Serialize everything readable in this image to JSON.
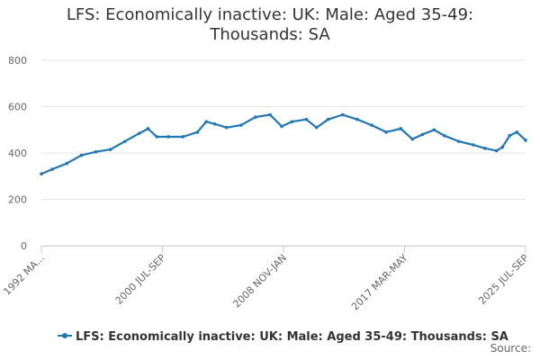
{
  "chart_data": {
    "type": "line",
    "title": "LFS: Economically inactive: UK: Male: Aged 35-49: Thousands: SA",
    "xlabel": "",
    "ylabel": "",
    "ylim": [
      0,
      800
    ],
    "y_ticks": [
      "0",
      "200",
      "400",
      "600",
      "800"
    ],
    "x_tick_labels": [
      "1992 MA...",
      "2000 JUL-SEP",
      "2008 NOV-JAN",
      "2017 MAR-MAY",
      "2025 JUL-SEP"
    ],
    "x_range": [
      1992.25,
      2025.6
    ],
    "grid": true,
    "legend_position": "bottom",
    "series": [
      {
        "name": "LFS: Economically inactive: UK: Male: Aged 35-49: Thousands: SA",
        "color": "#1f77b4",
        "points": [
          [
            1992.25,
            310
          ],
          [
            1993.0,
            330
          ],
          [
            1994.0,
            355
          ],
          [
            1995.0,
            390
          ],
          [
            1996.0,
            405
          ],
          [
            1997.0,
            415
          ],
          [
            1998.0,
            450
          ],
          [
            1999.0,
            485
          ],
          [
            1999.6,
            505
          ],
          [
            2000.2,
            470
          ],
          [
            2001.0,
            470
          ],
          [
            2002.0,
            470
          ],
          [
            2003.0,
            490
          ],
          [
            2003.6,
            535
          ],
          [
            2004.2,
            525
          ],
          [
            2005.0,
            510
          ],
          [
            2006.0,
            520
          ],
          [
            2007.0,
            555
          ],
          [
            2008.0,
            565
          ],
          [
            2008.8,
            515
          ],
          [
            2009.5,
            535
          ],
          [
            2010.5,
            545
          ],
          [
            2011.2,
            510
          ],
          [
            2012.0,
            545
          ],
          [
            2013.0,
            565
          ],
          [
            2014.0,
            545
          ],
          [
            2015.0,
            520
          ],
          [
            2016.0,
            490
          ],
          [
            2017.0,
            505
          ],
          [
            2017.8,
            460
          ],
          [
            2018.5,
            480
          ],
          [
            2019.3,
            500
          ],
          [
            2020.0,
            475
          ],
          [
            2021.0,
            450
          ],
          [
            2022.0,
            435
          ],
          [
            2022.8,
            420
          ],
          [
            2023.6,
            410
          ],
          [
            2024.0,
            425
          ],
          [
            2024.5,
            475
          ],
          [
            2025.0,
            490
          ],
          [
            2025.6,
            455
          ]
        ]
      }
    ]
  },
  "footer": {
    "source_label": "Source:"
  }
}
